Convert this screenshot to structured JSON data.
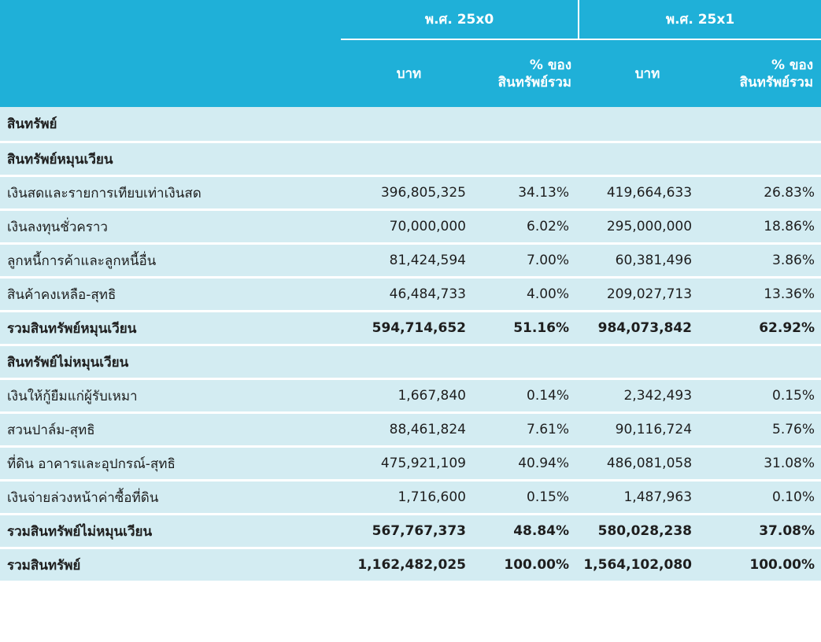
{
  "header": {
    "year_1": "พ.ศ. 25x0",
    "year_2": "พ.ศ. 25x1",
    "baht_1": "บาท",
    "pct_1_line1": "% ของ",
    "pct_1_line2": "สินทรัพย์รวม",
    "baht_2": "บาท",
    "pct_2_line1": "% ของ",
    "pct_2_line2": "สินทรัพย์รวม"
  },
  "rows": [
    {
      "label": "สินทรัพย์",
      "bold": true,
      "v1": "",
      "p1": "",
      "v2": "",
      "p2": ""
    },
    {
      "label": "สินทรัพย์หมุนเวียน",
      "bold": true,
      "v1": "",
      "p1": "",
      "v2": "",
      "p2": ""
    },
    {
      "label": "เงินสดและรายการเทียบเท่าเงินสด",
      "bold": false,
      "v1": "396,805,325",
      "p1": "34.13%",
      "v2": "419,664,633",
      "p2": "26.83%"
    },
    {
      "label": "เงินลงทุนชั่วคราว",
      "bold": false,
      "v1": "70,000,000",
      "p1": "6.02%",
      "v2": "295,000,000",
      "p2": "18.86%"
    },
    {
      "label": "ลูกหนี้การค้าและลูกหนี้อื่น",
      "bold": false,
      "v1": "81,424,594",
      "p1": "7.00%",
      "v2": "60,381,496",
      "p2": "3.86%"
    },
    {
      "label": "สินค้าคงเหลือ-สุทธิ",
      "bold": false,
      "v1": "46,484,733",
      "p1": "4.00%",
      "v2": "209,027,713",
      "p2": "13.36%"
    },
    {
      "label": "รวมสินทรัพย์หมุนเวียน",
      "bold": true,
      "v1": "594,714,652",
      "p1": "51.16%",
      "v2": "984,073,842",
      "p2": "62.92%"
    },
    {
      "label": "สินทรัพย์ไม่หมุนเวียน",
      "bold": true,
      "v1": "",
      "p1": "",
      "v2": "",
      "p2": ""
    },
    {
      "label": "เงินให้กู้ยืมแก่ผู้รับเหมา",
      "bold": false,
      "v1": "1,667,840",
      "p1": "0.14%",
      "v2": "2,342,493",
      "p2": "0.15%"
    },
    {
      "label": "สวนปาล์ม-สุทธิ",
      "bold": false,
      "v1": "88,461,824",
      "p1": "7.61%",
      "v2": "90,116,724",
      "p2": "5.76%"
    },
    {
      "label": "ที่ดิน อาคารและอุปกรณ์-สุทธิ",
      "bold": false,
      "v1": "475,921,109",
      "p1": "40.94%",
      "v2": "486,081,058",
      "p2": "31.08%"
    },
    {
      "label": "เงินจ่ายล่วงหน้าค่าซื้อที่ดิน",
      "bold": false,
      "v1": "1,716,600",
      "p1": "0.15%",
      "v2": "1,487,963",
      "p2": "0.10%"
    },
    {
      "label": "รวมสินทรัพย์ไม่หมุนเวียน",
      "bold": true,
      "v1": "567,767,373",
      "p1": "48.84%",
      "v2": "580,028,238",
      "p2": "37.08%"
    },
    {
      "label": "รวมสินทรัพย์",
      "bold": true,
      "v1": "1,162,482,025",
      "p1": "100.00%",
      "v2": "1,564,102,080",
      "p2": "100.00%"
    }
  ]
}
